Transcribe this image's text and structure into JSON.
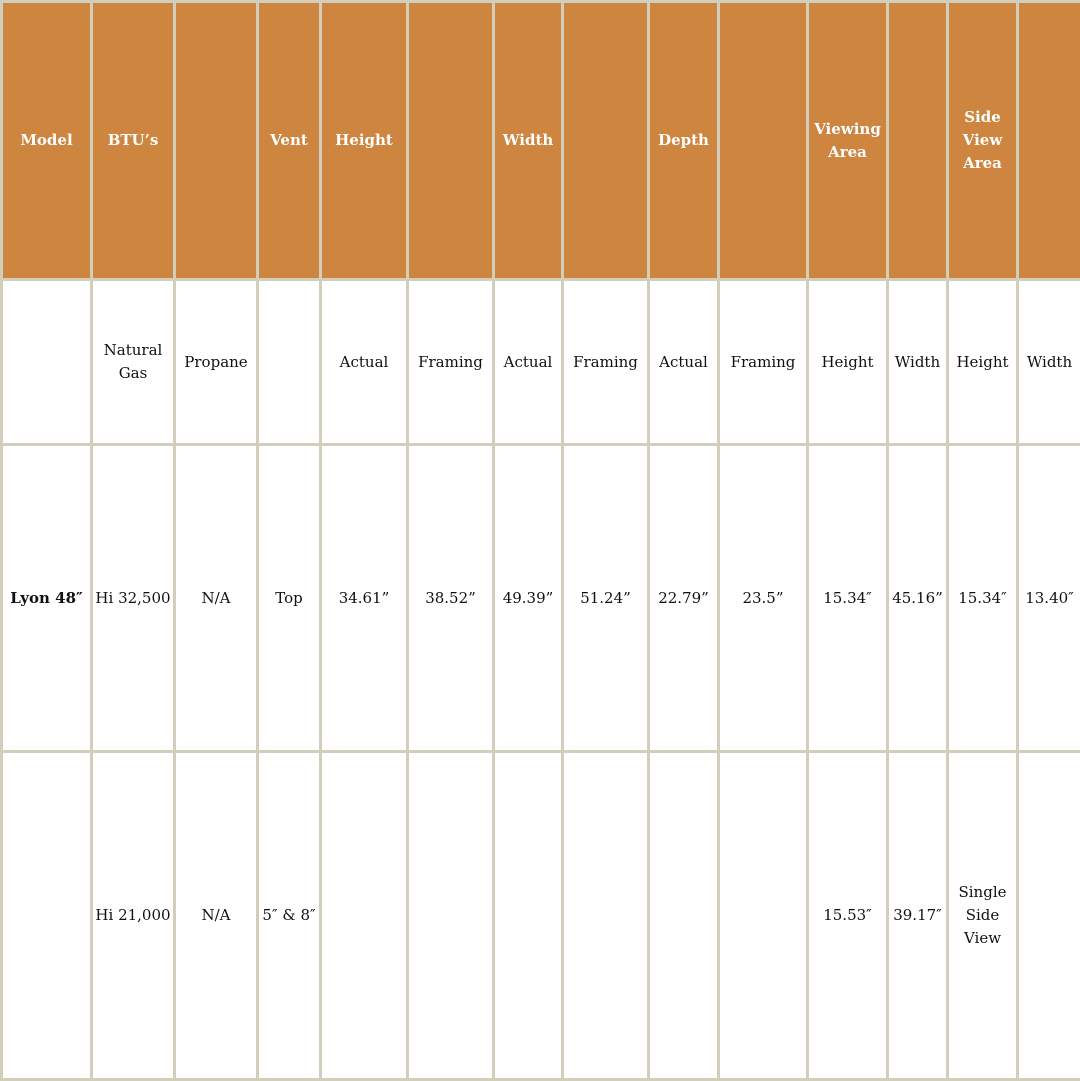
{
  "header": [
    "Model",
    "BTU’s",
    "",
    "Vent",
    "Height",
    "",
    "Width",
    "",
    "Depth",
    "",
    "Viewing Area",
    "",
    "Side View Area",
    ""
  ],
  "subheader": [
    "",
    "Natural Gas",
    "Propane",
    "",
    "Actual",
    "Framing",
    "Actual",
    "Framing",
    "Actual",
    "Framing",
    "Height",
    "Width",
    "Height",
    "Width"
  ],
  "rows": [
    [
      "Lyon 48″",
      "Hi 32,500",
      "N/A",
      "Top",
      "34.61”",
      "38.52”",
      "49.39”",
      "51.24”",
      "22.79”",
      "23.5”",
      "15.34″",
      "45.16”",
      "15.34″",
      "13.40″"
    ],
    [
      "",
      "Hi 21,000",
      "N/A",
      "5″ & 8″",
      "",
      "",
      "",
      "",
      "",
      "",
      "15.53″",
      "39.17″",
      "Single Side View",
      ""
    ]
  ],
  "colors": {
    "header_bg": "#cd853f",
    "border": "#d3cdbb"
  }
}
